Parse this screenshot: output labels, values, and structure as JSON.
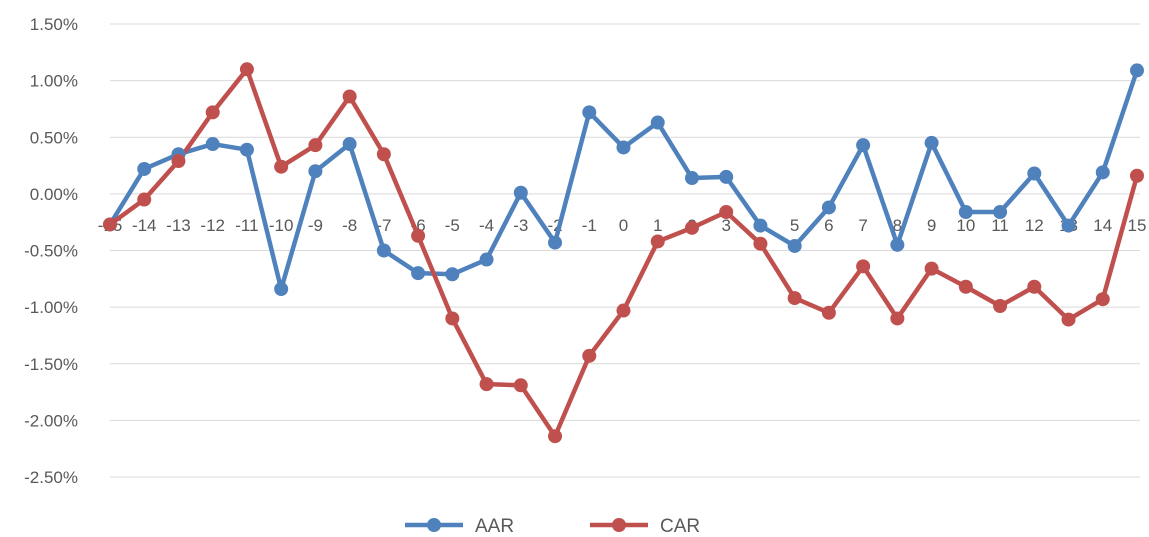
{
  "chart_data": {
    "type": "line",
    "categories": [
      "-15",
      "-14",
      "-13",
      "-12",
      "-11",
      "-10",
      "-9",
      "-8",
      "-7",
      "-6",
      "-5",
      "-4",
      "-3",
      "-2",
      "-1",
      "0",
      "1",
      "2",
      "3",
      "4",
      "5",
      "6",
      "7",
      "8",
      "9",
      "10",
      "11",
      "12",
      "13",
      "14",
      "15"
    ],
    "series": [
      {
        "name": "AAR",
        "color": "#4F81BD",
        "values": [
          -0.27,
          0.22,
          0.35,
          0.44,
          0.39,
          -0.84,
          0.2,
          0.44,
          -0.5,
          -0.7,
          -0.71,
          -0.58,
          0.01,
          -0.43,
          0.72,
          0.41,
          0.63,
          0.14,
          0.15,
          -0.28,
          -0.46,
          -0.12,
          0.43,
          -0.45,
          0.45,
          -0.16,
          -0.16,
          0.18,
          -0.28,
          0.19,
          1.09
        ]
      },
      {
        "name": "CAR",
        "color": "#C0504D",
        "values": [
          -0.27,
          -0.05,
          0.29,
          0.72,
          1.1,
          0.24,
          0.43,
          0.86,
          0.35,
          -0.37,
          -1.1,
          -1.68,
          -1.69,
          -2.14,
          -1.43,
          -1.03,
          -0.42,
          -0.3,
          -0.16,
          -0.44,
          -0.92,
          -1.05,
          -0.64,
          -1.1,
          -0.66,
          -0.82,
          -0.99,
          -0.82,
          -1.11,
          -0.93,
          0.16
        ]
      }
    ],
    "y_ticks": [
      "1.50%",
      "1.00%",
      "0.50%",
      "0.00%",
      "-0.50%",
      "-1.00%",
      "-1.50%",
      "-2.00%",
      "-2.50%"
    ],
    "ylim": [
      -2.5,
      1.5
    ],
    "y_unit": "%",
    "grid": true,
    "legend_position": "bottom"
  }
}
